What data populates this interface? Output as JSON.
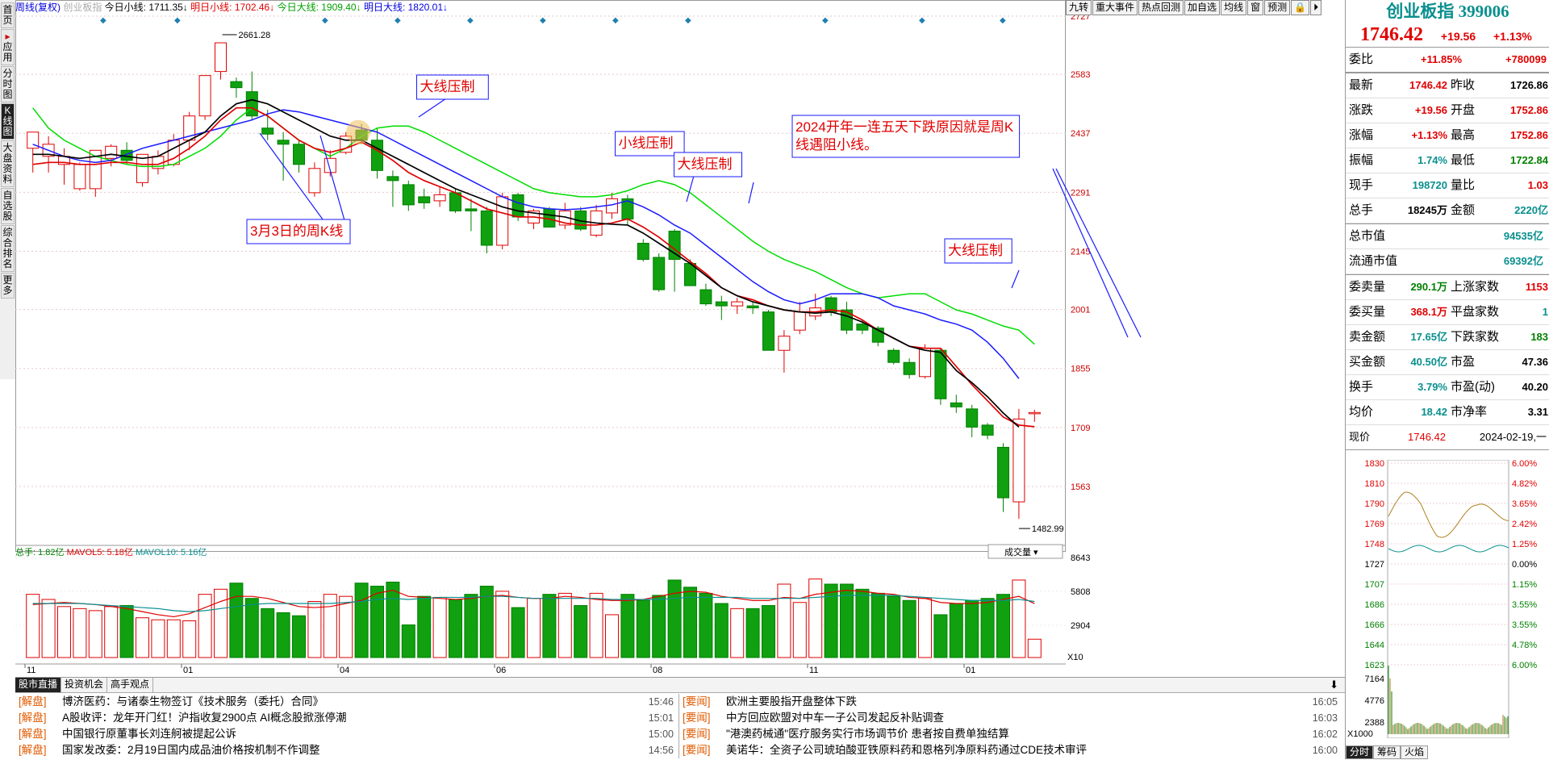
{
  "sidebar": {
    "tabs": [
      {
        "label": "首页",
        "active": false
      },
      {
        "label": "应用",
        "active": false,
        "prefix": "▸"
      },
      {
        "label": "分时图",
        "active": false
      },
      {
        "label": "K线图",
        "active": true
      },
      {
        "label": "大盘资料",
        "active": false
      },
      {
        "label": "自选股",
        "active": false
      },
      {
        "label": "综合排名",
        "active": false
      },
      {
        "label": "更多",
        "active": false
      }
    ]
  },
  "header": {
    "period": "周线(复权)",
    "symbol_faded": "创业板指",
    "indicators": [
      {
        "label": "今日小线: 1711.35",
        "arrow": "↓",
        "color": "#000000"
      },
      {
        "label": "明日小线: 1702.46",
        "arrow": "↓",
        "color": "#e00000"
      },
      {
        "label": "今日大线: 1909.40",
        "arrow": "↓",
        "color": "#00a000"
      },
      {
        "label": "明日大线: 1820.01",
        "arrow": "↓",
        "color": "#0000dd"
      }
    ]
  },
  "toolbar": {
    "buttons": [
      "九转",
      "重大事件",
      "热点回测",
      "加自选",
      "均线",
      "窗",
      "预测",
      "🔒",
      "⏵"
    ]
  },
  "chart_data": {
    "type": "candlestick",
    "price_axis": [
      2727,
      2583,
      2437,
      2291,
      2145,
      2001,
      1855,
      1709,
      1563
    ],
    "price_range": [
      1445,
      2757
    ],
    "x_ticks": [
      {
        "label": "11",
        "i": 0
      },
      {
        "label": "01",
        "i": 10
      },
      {
        "label": "04",
        "i": 20
      },
      {
        "label": "06",
        "i": 30
      },
      {
        "label": "08",
        "i": 40
      },
      {
        "label": "11",
        "i": 50
      },
      {
        "label": "01",
        "i": 60
      }
    ],
    "annotations": {
      "high_label": "2661.28",
      "low_label": "1482.99"
    },
    "candles": [
      {
        "o": 2400,
        "h": 2440,
        "l": 2340,
        "c": 2440
      },
      {
        "o": 2380,
        "h": 2430,
        "l": 2340,
        "c": 2410
      },
      {
        "o": 2360,
        "h": 2400,
        "l": 2310,
        "c": 2380
      },
      {
        "o": 2300,
        "h": 2365,
        "l": 2295,
        "c": 2360
      },
      {
        "o": 2300,
        "h": 2395,
        "l": 2280,
        "c": 2395
      },
      {
        "o": 2375,
        "h": 2410,
        "l": 2355,
        "c": 2405
      },
      {
        "o": 2395,
        "h": 2415,
        "l": 2360,
        "c": 2370
      },
      {
        "o": 2315,
        "h": 2385,
        "l": 2305,
        "c": 2385
      },
      {
        "o": 2350,
        "h": 2395,
        "l": 2335,
        "c": 2380
      },
      {
        "o": 2360,
        "h": 2435,
        "l": 2355,
        "c": 2420
      },
      {
        "o": 2420,
        "h": 2490,
        "l": 2395,
        "c": 2480
      },
      {
        "o": 2480,
        "h": 2580,
        "l": 2470,
        "c": 2580
      },
      {
        "o": 2590,
        "h": 2661,
        "l": 2570,
        "c": 2661
      },
      {
        "o": 2565,
        "h": 2575,
        "l": 2525,
        "c": 2550
      },
      {
        "o": 2540,
        "h": 2590,
        "l": 2470,
        "c": 2480
      },
      {
        "o": 2450,
        "h": 2495,
        "l": 2420,
        "c": 2435
      },
      {
        "o": 2420,
        "h": 2440,
        "l": 2320,
        "c": 2410
      },
      {
        "o": 2410,
        "h": 2420,
        "l": 2340,
        "c": 2360
      },
      {
        "o": 2290,
        "h": 2365,
        "l": 2280,
        "c": 2350
      },
      {
        "o": 2340,
        "h": 2395,
        "l": 2330,
        "c": 2375
      },
      {
        "o": 2390,
        "h": 2440,
        "l": 2385,
        "c": 2430
      },
      {
        "o": 2445,
        "h": 2460,
        "l": 2410,
        "c": 2420
      },
      {
        "o": 2420,
        "h": 2450,
        "l": 2325,
        "c": 2345
      },
      {
        "o": 2330,
        "h": 2345,
        "l": 2255,
        "c": 2320
      },
      {
        "o": 2310,
        "h": 2320,
        "l": 2245,
        "c": 2260
      },
      {
        "o": 2280,
        "h": 2300,
        "l": 2250,
        "c": 2265
      },
      {
        "o": 2270,
        "h": 2305,
        "l": 2255,
        "c": 2285
      },
      {
        "o": 2290,
        "h": 2300,
        "l": 2240,
        "c": 2245
      },
      {
        "o": 2250,
        "h": 2275,
        "l": 2195,
        "c": 2245
      },
      {
        "o": 2245,
        "h": 2255,
        "l": 2140,
        "c": 2160
      },
      {
        "o": 2160,
        "h": 2290,
        "l": 2150,
        "c": 2280
      },
      {
        "o": 2285,
        "h": 2290,
        "l": 2220,
        "c": 2230
      },
      {
        "o": 2215,
        "h": 2250,
        "l": 2200,
        "c": 2245
      },
      {
        "o": 2250,
        "h": 2255,
        "l": 2205,
        "c": 2205
      },
      {
        "o": 2210,
        "h": 2265,
        "l": 2200,
        "c": 2245
      },
      {
        "o": 2245,
        "h": 2255,
        "l": 2195,
        "c": 2200
      },
      {
        "o": 2185,
        "h": 2260,
        "l": 2180,
        "c": 2245
      },
      {
        "o": 2240,
        "h": 2290,
        "l": 2225,
        "c": 2275
      },
      {
        "o": 2275,
        "h": 2285,
        "l": 2210,
        "c": 2225
      },
      {
        "o": 2165,
        "h": 2175,
        "l": 2120,
        "c": 2125
      },
      {
        "o": 2130,
        "h": 2140,
        "l": 2045,
        "c": 2050
      },
      {
        "o": 2195,
        "h": 2200,
        "l": 2045,
        "c": 2125
      },
      {
        "o": 2115,
        "h": 2125,
        "l": 2060,
        "c": 2060
      },
      {
        "o": 2050,
        "h": 2065,
        "l": 2010,
        "c": 2015
      },
      {
        "o": 2020,
        "h": 2035,
        "l": 1975,
        "c": 2010
      },
      {
        "o": 2010,
        "h": 2030,
        "l": 1990,
        "c": 2020
      },
      {
        "o": 2010,
        "h": 2020,
        "l": 1990,
        "c": 2005
      },
      {
        "o": 1995,
        "h": 2000,
        "l": 1900,
        "c": 1900
      },
      {
        "o": 1900,
        "h": 1950,
        "l": 1845,
        "c": 1935
      },
      {
        "o": 1950,
        "h": 2020,
        "l": 1940,
        "c": 1995
      },
      {
        "o": 1985,
        "h": 2040,
        "l": 1975,
        "c": 2005
      },
      {
        "o": 2030,
        "h": 2035,
        "l": 1985,
        "c": 1995
      },
      {
        "o": 2000,
        "h": 2020,
        "l": 1940,
        "c": 1950
      },
      {
        "o": 1965,
        "h": 1975,
        "l": 1940,
        "c": 1950
      },
      {
        "o": 1955,
        "h": 1960,
        "l": 1910,
        "c": 1920
      },
      {
        "o": 1900,
        "h": 1905,
        "l": 1865,
        "c": 1870
      },
      {
        "o": 1870,
        "h": 1880,
        "l": 1830,
        "c": 1840
      },
      {
        "o": 1835,
        "h": 1915,
        "l": 1830,
        "c": 1905
      },
      {
        "o": 1900,
        "h": 1905,
        "l": 1765,
        "c": 1780
      },
      {
        "o": 1770,
        "h": 1790,
        "l": 1745,
        "c": 1760
      },
      {
        "o": 1755,
        "h": 1765,
        "l": 1685,
        "c": 1710
      },
      {
        "o": 1715,
        "h": 1720,
        "l": 1680,
        "c": 1690
      },
      {
        "o": 1660,
        "h": 1670,
        "l": 1500,
        "c": 1535
      },
      {
        "o": 1525,
        "h": 1755,
        "l": 1483,
        "c": 1730
      },
      {
        "o": 1745,
        "h": 1753,
        "l": 1723,
        "c": 1746
      }
    ],
    "ma_small_black": [
      2385,
      2385,
      2380,
      2375,
      2380,
      2385,
      2380,
      2375,
      2380,
      2400,
      2420,
      2440,
      2480,
      2510,
      2520,
      2510,
      2490,
      2470,
      2450,
      2430,
      2420,
      2420,
      2400,
      2380,
      2360,
      2340,
      2320,
      2300,
      2285,
      2270,
      2255,
      2245,
      2240,
      2235,
      2230,
      2220,
      2215,
      2212,
      2210,
      2190,
      2165,
      2140,
      2115,
      2085,
      2055,
      2035,
      2020,
      2010,
      2000,
      1995,
      1992,
      1995,
      1985,
      1970,
      1950,
      1930,
      1910,
      1900,
      1895,
      1850,
      1820,
      1785,
      1745,
      1710
    ],
    "ma_small_red": [
      2360,
      2365,
      2365,
      2360,
      2360,
      2365,
      2365,
      2360,
      2360,
      2375,
      2400,
      2430,
      2470,
      2500,
      2500,
      2480,
      2450,
      2420,
      2400,
      2390,
      2400,
      2415,
      2395,
      2370,
      2340,
      2320,
      2305,
      2290,
      2270,
      2250,
      2240,
      2230,
      2230,
      2225,
      2215,
      2210,
      2210,
      2215,
      2225,
      2205,
      2180,
      2150,
      2120,
      2090,
      2055,
      2035,
      2025,
      2010,
      2000,
      1995,
      1995,
      2000,
      1995,
      1975,
      1950,
      1930,
      1910,
      1905,
      1905,
      1860,
      1815,
      1775,
      1735,
      1715,
      1711
    ],
    "ma_big_blue": [
      2410,
      2395,
      2380,
      2370,
      2365,
      2370,
      2385,
      2400,
      2410,
      2420,
      2430,
      2440,
      2450,
      2460,
      2470,
      2485,
      2495,
      2490,
      2480,
      2470,
      2460,
      2450,
      2440,
      2420,
      2400,
      2380,
      2360,
      2340,
      2320,
      2300,
      2280,
      2265,
      2255,
      2250,
      2248,
      2250,
      2255,
      2260,
      2270,
      2255,
      2235,
      2210,
      2190,
      2160,
      2130,
      2100,
      2070,
      2045,
      2025,
      2015,
      2025,
      2040,
      2040,
      2040,
      2030,
      2010,
      2000,
      1990,
      1975,
      1965,
      1950,
      1920,
      1880,
      1830
    ],
    "ma_big_green": [
      2500,
      2450,
      2420,
      2400,
      2380,
      2370,
      2360,
      2355,
      2355,
      2360,
      2380,
      2400,
      2430,
      2470,
      2500,
      2480,
      2450,
      2420,
      2400,
      2380,
      2400,
      2430,
      2450,
      2455,
      2455,
      2440,
      2420,
      2400,
      2380,
      2360,
      2340,
      2320,
      2300,
      2290,
      2285,
      2280,
      2280,
      2285,
      2295,
      2310,
      2320,
      2310,
      2290,
      2260,
      2230,
      2200,
      2170,
      2145,
      2125,
      2110,
      2095,
      2075,
      2055,
      2040,
      2030,
      2035,
      2040,
      2040,
      2020,
      2000,
      1990,
      1975,
      1960,
      1950,
      1915
    ],
    "volume": {
      "axis": [
        8643,
        5808,
        2904
      ],
      "header": {
        "total": "总手: 1.82亿",
        "ma5": "MAVOL5: 5.18亿",
        "ma10": "MAVOL10: 5.16亿"
      },
      "bars": [
        6.2,
        5.7,
        5.0,
        4.8,
        4.6,
        5.0,
        5.1,
        3.9,
        3.7,
        3.7,
        3.6,
        6.2,
        6.7,
        7.3,
        5.8,
        4.8,
        4.4,
        4.1,
        5.5,
        6.2,
        6.0,
        7.3,
        7.0,
        7.4,
        3.2,
        6.0,
        5.9,
        5.7,
        6.2,
        7.0,
        6.5,
        4.9,
        5.8,
        6.2,
        6.3,
        5.1,
        6.3,
        4.2,
        6.2,
        5.6,
        6.1,
        7.6,
        6.9,
        6.3,
        5.3,
        4.8,
        4.8,
        5.1,
        7.2,
        5.4,
        7.7,
        7.2,
        7.2,
        6.7,
        6.3,
        6.0,
        5.6,
        5.8,
        4.2,
        5.3,
        5.6,
        5.8,
        6.2,
        7.6,
        1.8
      ],
      "ma5": [
        5.2,
        5.3,
        5.4,
        5.3,
        5.2,
        5.0,
        4.8,
        4.5,
        4.2,
        4.0,
        4.3,
        4.9,
        5.5,
        6.0,
        6.0,
        5.8,
        5.4,
        5.0,
        4.9,
        5.0,
        5.3,
        5.6,
        6.3,
        6.6,
        6.0,
        5.9,
        5.8,
        5.7,
        5.8,
        6.0,
        6.1,
        5.9,
        5.8,
        5.8,
        6.0,
        5.9,
        5.7,
        5.6,
        5.6,
        5.7,
        6.0,
        6.3,
        6.5,
        6.4,
        6.0,
        5.8,
        5.6,
        5.6,
        5.9,
        5.8,
        6.2,
        6.4,
        6.6,
        6.5,
        6.3,
        6.2,
        5.9,
        5.8,
        5.4,
        5.3,
        5.3,
        5.4,
        5.7,
        6.0,
        5.3
      ],
      "ma10": [
        5.3,
        5.3,
        5.3,
        5.3,
        5.2,
        5.1,
        5.0,
        4.9,
        4.8,
        4.6,
        4.5,
        4.6,
        4.8,
        5.0,
        5.2,
        5.3,
        5.3,
        5.3,
        5.3,
        5.3,
        5.4,
        5.5,
        5.7,
        5.8,
        5.7,
        5.8,
        5.9,
        5.9,
        5.9,
        6.0,
        6.0,
        5.9,
        5.8,
        5.8,
        5.8,
        5.8,
        5.8,
        5.7,
        5.7,
        5.7,
        5.7,
        5.8,
        5.9,
        5.9,
        5.9,
        5.9,
        5.8,
        5.8,
        5.8,
        5.8,
        5.9,
        6.0,
        6.1,
        6.1,
        6.1,
        6.1,
        6.0,
        5.9,
        5.8,
        5.7,
        5.6,
        5.6,
        5.6,
        5.7,
        5.5
      ]
    },
    "callouts": [
      {
        "text": "大线压制",
        "box": "blue"
      },
      {
        "text": "3月3日的周K线",
        "box": "blue"
      },
      {
        "text": "小线压制",
        "box": "blue"
      },
      {
        "text": "大线压制",
        "box": "blue"
      },
      {
        "text": "大线压制",
        "box": "blue"
      },
      {
        "text": "2024开年一连五天下跌原因就是周K\n线遇阻小线。",
        "box": "blue"
      }
    ],
    "vol_selector": "成交量",
    "multiplier": "X10"
  },
  "quote": {
    "title": "创业板指 399006",
    "price": "1746.42",
    "change": "+19.56",
    "change_pct": "+1.13%",
    "weibi": {
      "label": "委比",
      "pct": "+11.85%",
      "val": "+780099"
    },
    "rows": [
      [
        {
          "k": "最新",
          "v": "1746.42",
          "c": "red"
        },
        {
          "k": "昨收",
          "v": "1726.86",
          "c": "black"
        }
      ],
      [
        {
          "k": "涨跌",
          "v": "+19.56",
          "c": "red"
        },
        {
          "k": "开盘",
          "v": "1752.86",
          "c": "red"
        }
      ],
      [
        {
          "k": "涨幅",
          "v": "+1.13%",
          "c": "red"
        },
        {
          "k": "最高",
          "v": "1752.86",
          "c": "red"
        }
      ],
      [
        {
          "k": "振幅",
          "v": "1.74%",
          "c": "teal"
        },
        {
          "k": "最低",
          "v": "1722.84",
          "c": "green"
        }
      ],
      [
        {
          "k": "现手",
          "v": "198720",
          "c": "teal"
        },
        {
          "k": "量比",
          "v": "1.03",
          "c": "red"
        }
      ],
      [
        {
          "k": "总手",
          "v": "18245万",
          "c": "black"
        },
        {
          "k": "金额",
          "v": "2220亿",
          "c": "teal"
        }
      ]
    ],
    "market_cap": [
      {
        "k": "总市值",
        "v": "94535亿"
      },
      {
        "k": "流通市值",
        "v": "69392亿"
      }
    ],
    "rows2": [
      [
        {
          "k": "委卖量",
          "v": "290.1万",
          "c": "green"
        },
        {
          "k": "上涨家数",
          "v": "1153",
          "c": "red"
        }
      ],
      [
        {
          "k": "委买量",
          "v": "368.1万",
          "c": "red"
        },
        {
          "k": "平盘家数",
          "v": "1",
          "c": "teal"
        }
      ],
      [
        {
          "k": "卖金额",
          "v": "17.65亿",
          "c": "teal"
        },
        {
          "k": "下跌家数",
          "v": "183",
          "c": "green"
        }
      ],
      [
        {
          "k": "买金额",
          "v": "40.50亿",
          "c": "teal"
        },
        {
          "k": "市盈",
          "v": "47.36",
          "c": "black"
        }
      ],
      [
        {
          "k": "换手",
          "v": "3.79%",
          "c": "teal"
        },
        {
          "k": "市盈(动)",
          "v": "40.20",
          "c": "black"
        }
      ],
      [
        {
          "k": "均价",
          "v": "18.42",
          "c": "teal"
        },
        {
          "k": "市净率",
          "v": "3.31",
          "c": "black"
        }
      ]
    ],
    "current": {
      "label": "现价",
      "value": "1746.42",
      "date": "2024-02-19,一"
    }
  },
  "mini_chart": {
    "left_axis": [
      "1830",
      "1810",
      "1790",
      "1769",
      "1748",
      "1727",
      "1707",
      "1686",
      "1666",
      "1644",
      "1623"
    ],
    "right_axis": [
      "6.00%",
      "4.82%",
      "3.65%",
      "2.42%",
      "1.25%",
      "0.00%",
      "1.15%",
      "3.55%",
      "3.55%",
      "4.78%",
      "6.00%"
    ],
    "vol_axis": [
      "7164",
      "4776",
      "2388"
    ],
    "vol_mult": "X1000",
    "tabs": [
      "分时",
      "筹码",
      "火焰"
    ]
  },
  "news": {
    "tabs": [
      "股市直播",
      "投资机会",
      "高手观点"
    ],
    "left": [
      {
        "tag": "[解盘]",
        "title": "博济医药：与诸泰生物签订《技术服务（委托）合同》",
        "time": "15:46"
      },
      {
        "tag": "[解盘]",
        "title": "A股收评：龙年开门红！沪指收复2900点 AI概念股掀涨停潮",
        "time": "15:01"
      },
      {
        "tag": "[解盘]",
        "title": "中国银行原董事长刘连舸被提起公诉",
        "time": "15:00"
      },
      {
        "tag": "[解盘]",
        "title": "国家发改委：2月19日国内成品油价格按机制不作调整",
        "time": "14:56"
      }
    ],
    "right": [
      {
        "tag": "[要闻]",
        "title": "欧洲主要股指开盘整体下跌",
        "time": "16:05"
      },
      {
        "tag": "[要闻]",
        "title": "中方回应欧盟对中车一子公司发起反补贴调查",
        "time": "16:03"
      },
      {
        "tag": "[要闻]",
        "title": "\"港澳药械通\"医疗服务实行市场调节价 患者按自费单独结算",
        "time": "16:02"
      },
      {
        "tag": "[要闻]",
        "title": "美诺华：全资子公司琥珀酸亚铁原料药和恩格列净原料药通过CDE技术审评",
        "time": "16:00"
      }
    ]
  }
}
